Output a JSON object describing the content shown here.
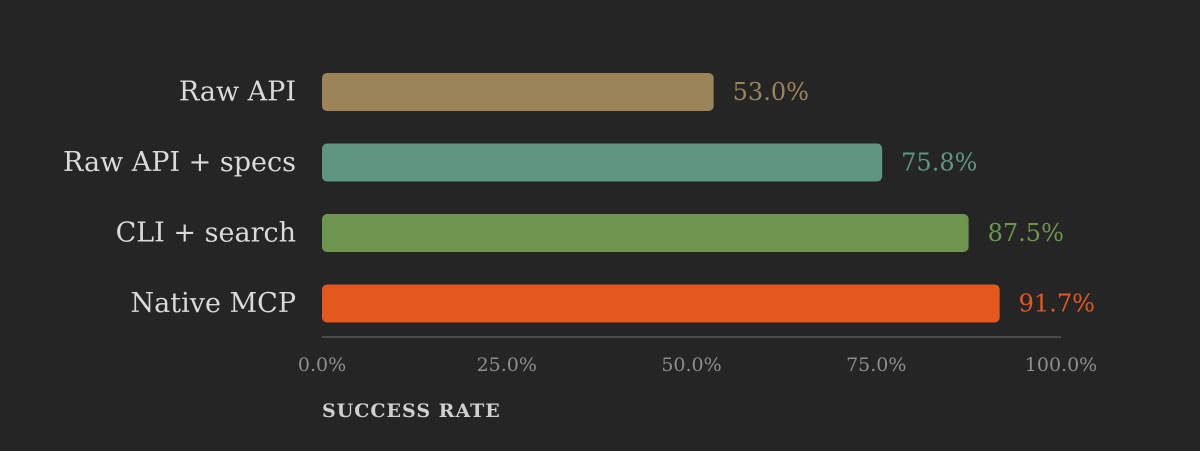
{
  "chart_data": {
    "type": "bar",
    "orientation": "horizontal",
    "categories": [
      "Raw API",
      "Raw API + specs",
      "CLI + search",
      "Native MCP"
    ],
    "values": [
      53.0,
      75.8,
      87.5,
      91.7
    ],
    "value_labels": [
      "53.0%",
      "75.8%",
      "87.5%",
      "91.7%"
    ],
    "colors": [
      "#9C8459",
      "#5E9680",
      "#6D954D",
      "#E4581E"
    ],
    "xlabel": "SUCCESS RATE",
    "ylabel": "",
    "title": "",
    "xlim": [
      0,
      100
    ],
    "xticks": [
      0,
      25,
      50,
      75,
      100
    ],
    "xtick_labels": [
      "0.0%",
      "25.0%",
      "50.0%",
      "75.0%",
      "100.0%"
    ],
    "grid": false,
    "legend": "none"
  },
  "theme": {
    "background": "#252525",
    "category_label_color": "#DADADA",
    "tick_label_color": "#8E8E8E",
    "axis_line_color": "#4A4A4A",
    "axis_title_color": "#D0D0D0"
  }
}
